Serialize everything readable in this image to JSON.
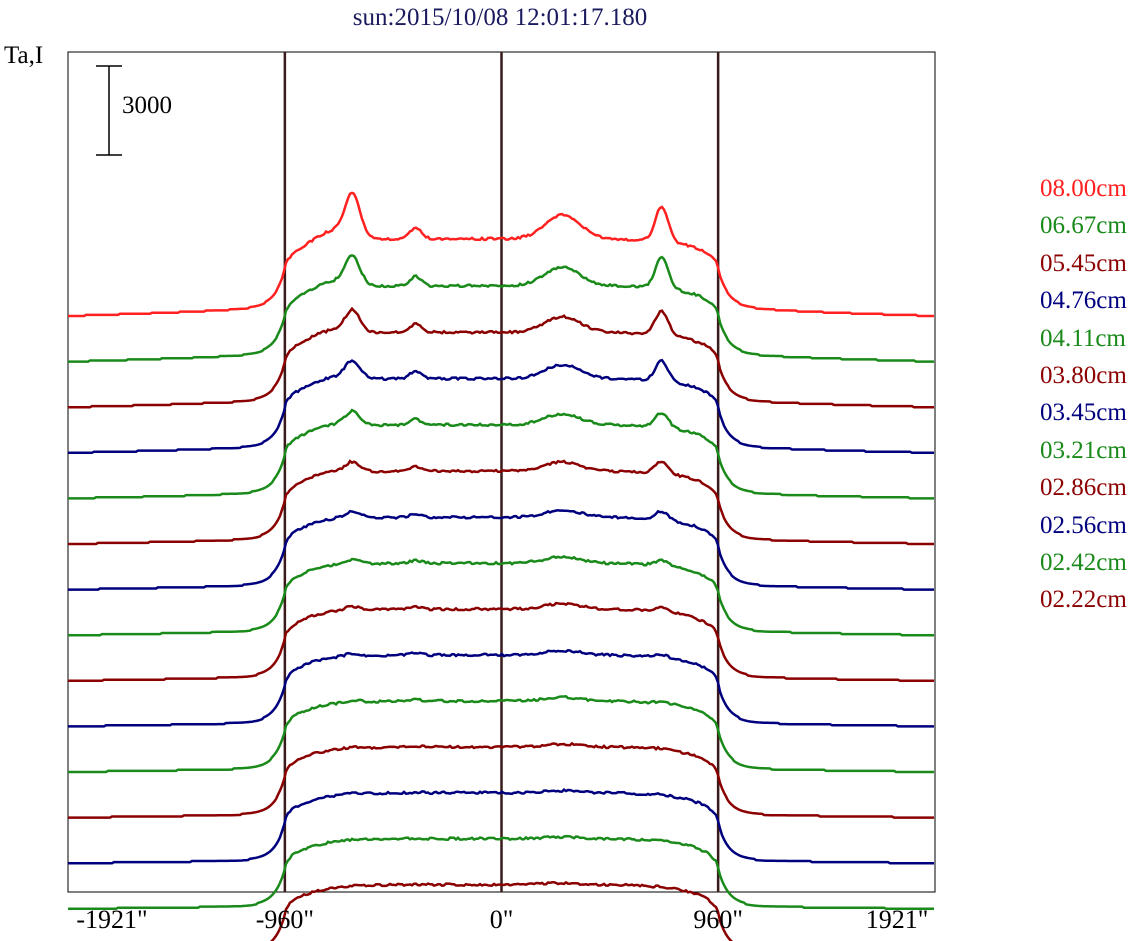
{
  "chart_data": {
    "type": "line",
    "title": "sun:2015/10/08 12:01:17.180",
    "ylabel": "Ta,I",
    "scale_bar_label": "3000",
    "xlim": [
      -1921,
      1921
    ],
    "xticks": [
      "-1921\"",
      "-960\"",
      "0\"",
      "960\"",
      "1921\""
    ],
    "xtick_values": [
      -1921,
      -960,
      0,
      960,
      1921
    ],
    "vertical_lines": [
      -960,
      0,
      960
    ],
    "colors": {
      "red": "#ff2020",
      "green": "#1a8a1a",
      "darkred": "#8b0000",
      "blue": "#00007f"
    },
    "series": [
      {
        "name": "08.00cm",
        "color": "#ff2020",
        "peak_left": 2200,
        "peak_mid": 600,
        "peak_right": 1900,
        "peak_center": 1300,
        "limb": 1700
      },
      {
        "name": "06.67cm",
        "color": "#1a8a1a",
        "peak_left": 1450,
        "peak_mid": 500,
        "peak_right": 1700,
        "peak_center": 1000,
        "limb": 1500
      },
      {
        "name": "05.45cm",
        "color": "#8b0000",
        "peak_left": 1100,
        "peak_mid": 450,
        "peak_right": 1300,
        "peak_center": 850,
        "limb": 1350
      },
      {
        "name": "04.76cm",
        "color": "#00007f",
        "peak_left": 900,
        "peak_mid": 400,
        "peak_right": 1100,
        "peak_center": 750,
        "limb": 1250
      },
      {
        "name": "04.11cm",
        "color": "#1a8a1a",
        "peak_left": 700,
        "peak_mid": 300,
        "peak_right": 800,
        "peak_center": 600,
        "limb": 1150
      },
      {
        "name": "03.80cm",
        "color": "#8b0000",
        "peak_left": 500,
        "peak_mid": 250,
        "peak_right": 650,
        "peak_center": 500,
        "limb": 1050
      },
      {
        "name": "03.45cm",
        "color": "#00007f",
        "peak_left": 350,
        "peak_mid": 200,
        "peak_right": 450,
        "peak_center": 400,
        "limb": 950
      },
      {
        "name": "03.21cm",
        "color": "#1a8a1a",
        "peak_left": 250,
        "peak_mid": 150,
        "peak_right": 300,
        "peak_center": 350,
        "limb": 900
      },
      {
        "name": "02.86cm",
        "color": "#8b0000",
        "peak_left": 200,
        "peak_mid": 120,
        "peak_right": 220,
        "peak_center": 300,
        "limb": 850
      },
      {
        "name": "02.56cm",
        "color": "#00007f",
        "peak_left": 150,
        "peak_mid": 100,
        "peak_right": 150,
        "peak_center": 250,
        "limb": 800
      },
      {
        "name": "02.42cm",
        "color": "#1a8a1a",
        "peak_left": 100,
        "peak_mid": 80,
        "peak_right": 100,
        "peak_center": 200,
        "limb": 750
      },
      {
        "name": "02.22cm",
        "color": "#8b0000",
        "peak_left": 60,
        "peak_mid": 60,
        "peak_right": 60,
        "peak_center": 150,
        "limb": 700
      }
    ],
    "extra_baseline_series": [
      {
        "color": "#00007f",
        "peak_left": 40,
        "peak_mid": 40,
        "peak_right": 40,
        "peak_center": 120,
        "limb": 650
      },
      {
        "color": "#1a8a1a",
        "peak_left": 30,
        "peak_mid": 30,
        "peak_right": 30,
        "peak_center": 100,
        "limb": 600
      },
      {
        "color": "#8b0000",
        "peak_left": 20,
        "peak_mid": 20,
        "peak_right": 20,
        "peak_center": 80,
        "limb": 550
      }
    ],
    "quiet_sun_level": 3600
  }
}
